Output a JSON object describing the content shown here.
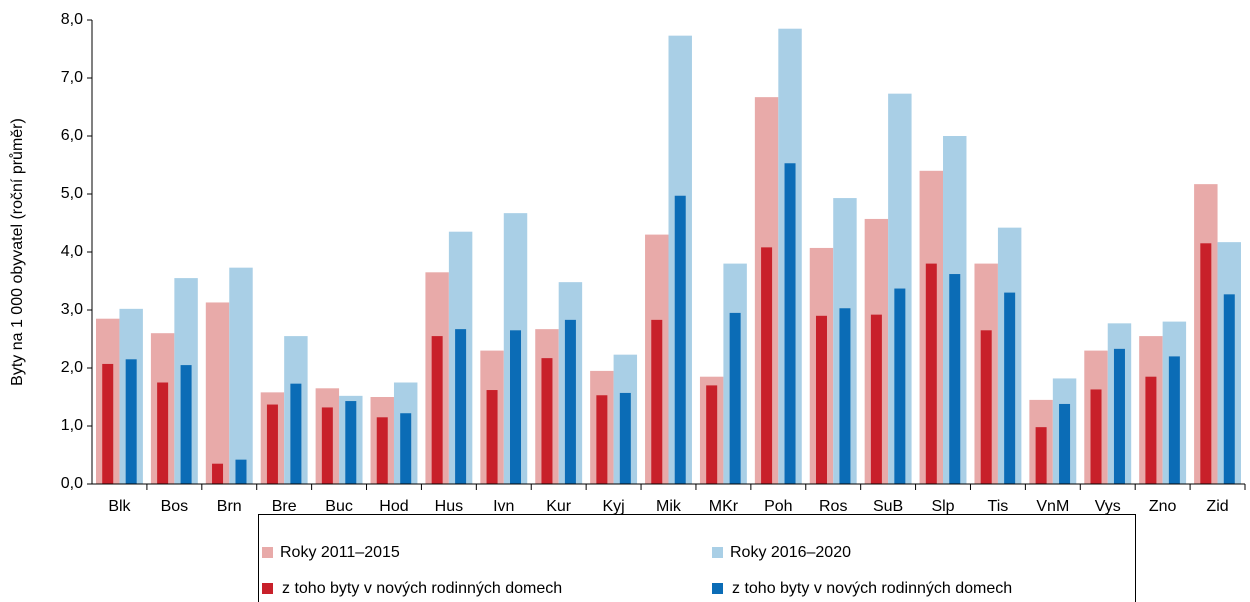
{
  "chart_data": {
    "type": "bar",
    "y_label": "Byty na 1 000 obyvatel  (roční průměr)",
    "categories": [
      "Blk",
      "Bos",
      "Brn",
      "Bre",
      "Buc",
      "Hod",
      "Hus",
      "Ivn",
      "Kur",
      "Kyj",
      "Mik",
      "MKr",
      "Poh",
      "Ros",
      "SuB",
      "Slp",
      "Tis",
      "VnM",
      "Vys",
      "Zno",
      "Zid"
    ],
    "series": [
      {
        "name": "Roky 2011–2015",
        "color": "#e8aaa9",
        "values": [
          2.85,
          2.6,
          3.13,
          1.58,
          1.65,
          1.5,
          3.65,
          2.3,
          2.67,
          1.95,
          4.3,
          1.85,
          6.67,
          4.07,
          4.57,
          5.4,
          3.8,
          1.45,
          2.3,
          2.55,
          5.17
        ]
      },
      {
        "name": "z toho byty v nových rodinných domech",
        "color": "#c8202a",
        "values": [
          2.07,
          1.75,
          0.35,
          1.37,
          1.32,
          1.15,
          2.55,
          1.62,
          2.17,
          1.53,
          2.83,
          1.7,
          4.08,
          2.9,
          2.92,
          3.8,
          2.65,
          0.98,
          1.63,
          1.85,
          4.15
        ]
      },
      {
        "name": "Roky 2016–2020",
        "color": "#a9cfe6",
        "values": [
          3.02,
          3.55,
          3.73,
          2.55,
          1.52,
          1.75,
          4.35,
          4.67,
          3.48,
          2.23,
          7.73,
          3.8,
          7.85,
          4.93,
          6.73,
          6.0,
          4.42,
          1.82,
          2.77,
          2.8,
          4.17
        ]
      },
      {
        "name": "z toho byty v nových rodinných domech",
        "color": "#0b6cb6",
        "values": [
          2.15,
          2.05,
          0.42,
          1.73,
          1.43,
          1.22,
          2.67,
          2.65,
          2.83,
          1.57,
          4.97,
          2.95,
          5.53,
          3.03,
          3.37,
          3.62,
          3.3,
          1.38,
          2.33,
          2.2,
          3.27
        ]
      }
    ],
    "ylim": [
      0,
      8
    ],
    "yticks": [
      {
        "value": 0,
        "label": "0,0"
      },
      {
        "value": 1,
        "label": "1,0"
      },
      {
        "value": 2,
        "label": "2,0"
      },
      {
        "value": 3,
        "label": "3,0"
      },
      {
        "value": 4,
        "label": "4,0"
      },
      {
        "value": 5,
        "label": "5,0"
      },
      {
        "value": 6,
        "label": "6,0"
      },
      {
        "value": 7,
        "label": "7,0"
      },
      {
        "value": 8,
        "label": "8,0"
      }
    ],
    "grid": false,
    "legend": "bottom"
  }
}
